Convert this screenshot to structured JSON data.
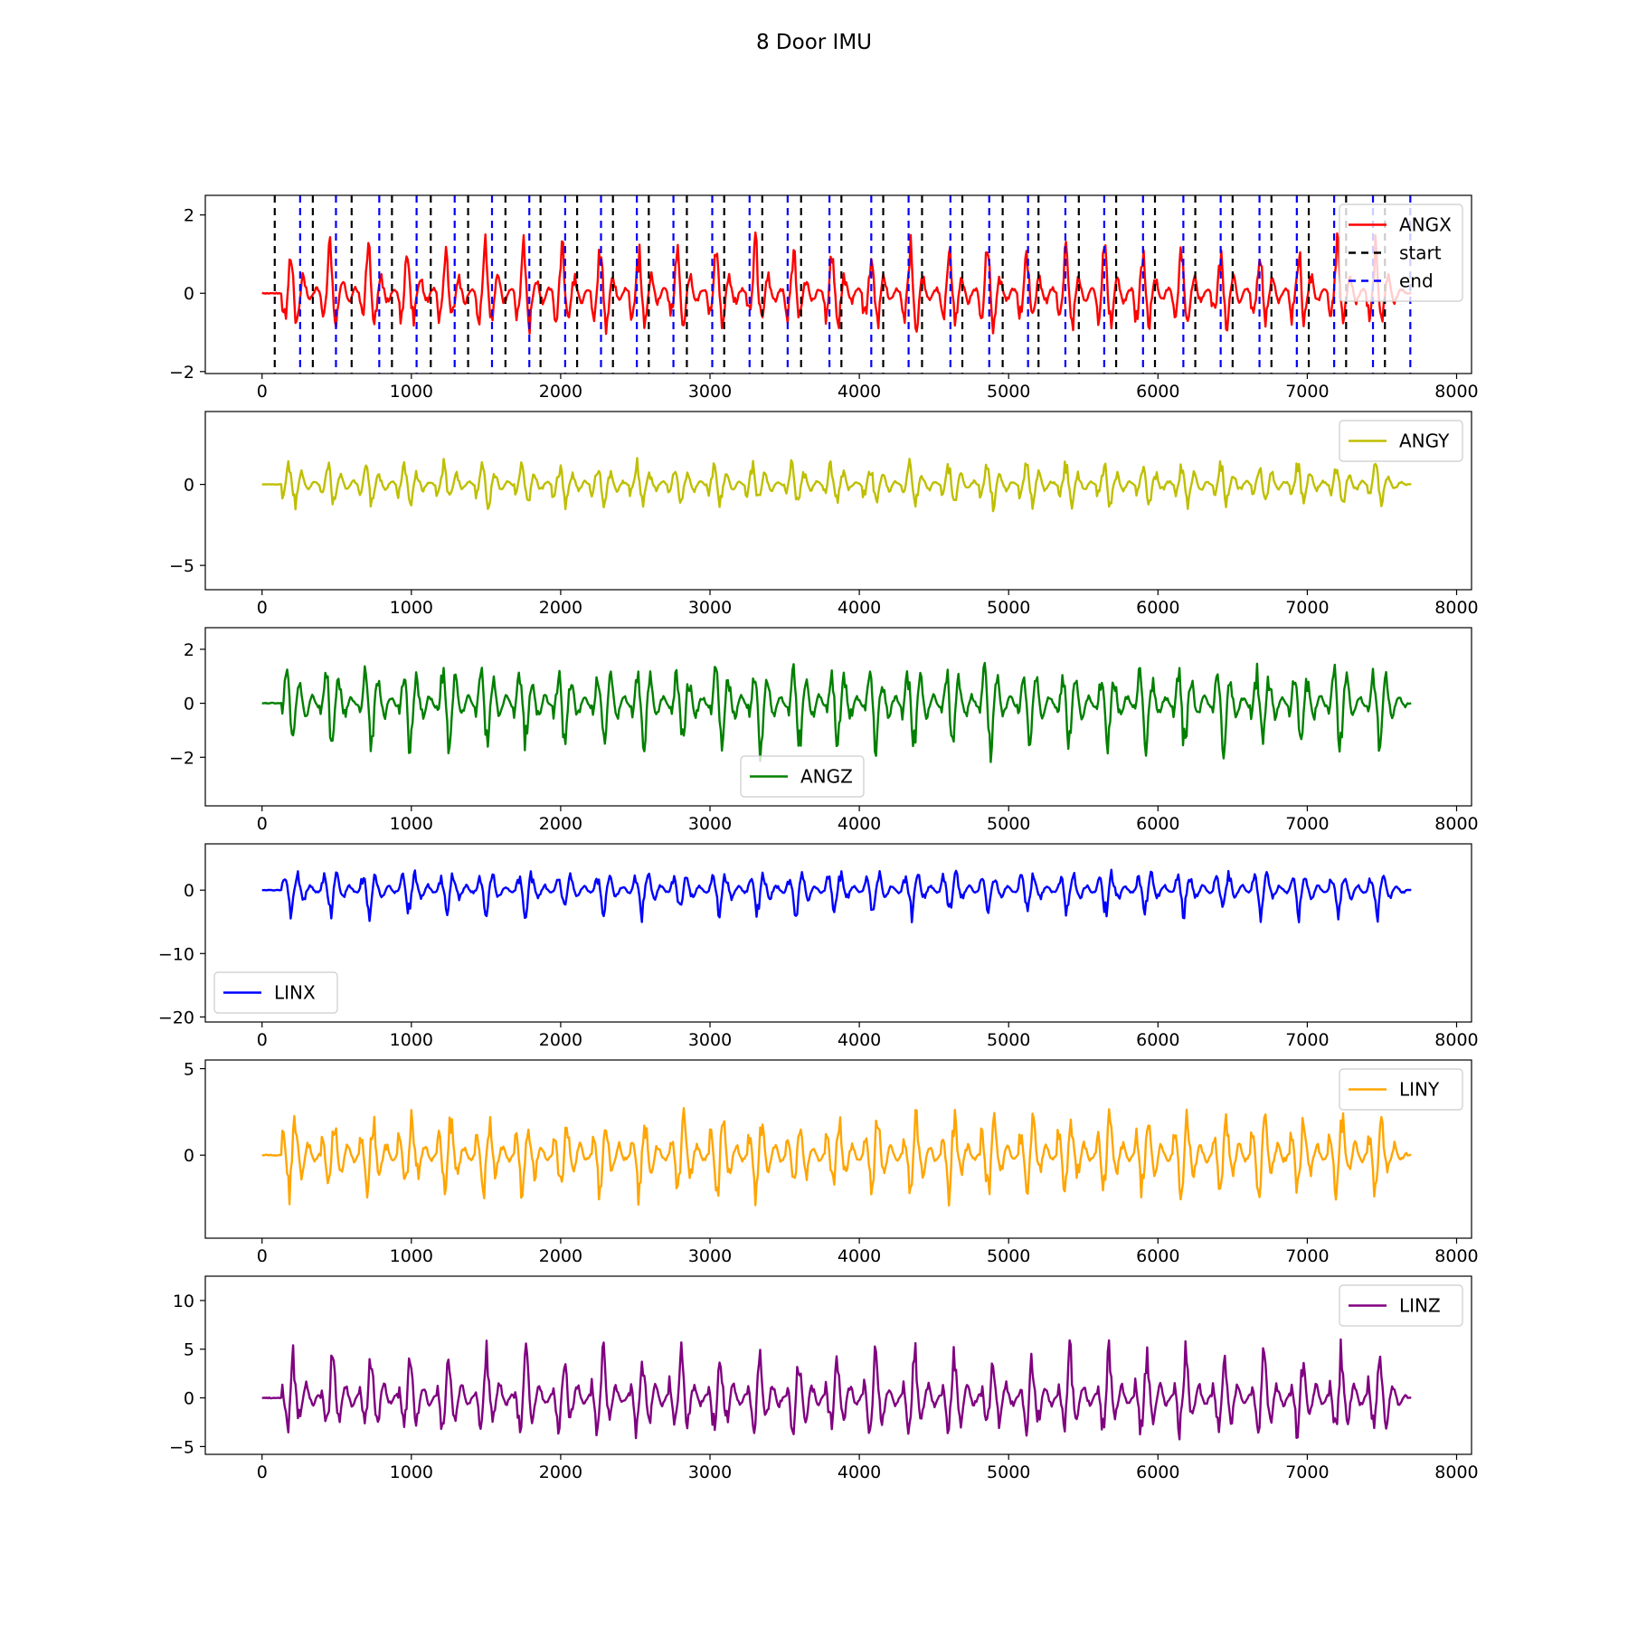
{
  "figure_title": "8 Door IMU",
  "chart_data": [
    {
      "type": "line",
      "series": [
        {
          "name": "ANGX",
          "color": "#ff0000",
          "amp": 1.25
        }
      ],
      "vlines": [
        {
          "name": "start",
          "color": "#000000",
          "x": [
            85,
            340,
            600,
            870,
            1130,
            1380,
            1630,
            1865,
            2110,
            2350,
            2590,
            2845,
            3095,
            3350,
            3610,
            3880,
            4160,
            4420,
            4690,
            4960,
            5200,
            5470,
            5720,
            5980,
            6250,
            6500,
            6760,
            7010,
            7260,
            7520
          ]
        },
        {
          "name": "end",
          "color": "#0000ff",
          "x": [
            255,
            495,
            785,
            1035,
            1290,
            1540,
            1790,
            2030,
            2270,
            2510,
            2755,
            3015,
            3265,
            3520,
            3800,
            4080,
            4330,
            4610,
            4870,
            5130,
            5380,
            5640,
            5900,
            6170,
            6420,
            6680,
            6930,
            7180,
            7440,
            7690
          ]
        }
      ],
      "x_range": [
        0,
        7700
      ],
      "xlim": [
        -380,
        8100
      ],
      "ylim": [
        -2.05,
        2.5
      ],
      "x_ticks": [
        0,
        1000,
        2000,
        3000,
        4000,
        5000,
        6000,
        7000,
        8000
      ],
      "y_ticks": [
        2,
        0,
        -2
      ],
      "y_tick_labels": [
        "2",
        "0",
        "−2"
      ],
      "legend": {
        "position": "top-right",
        "entries": [
          "ANGX",
          "start",
          "end"
        ]
      }
    },
    {
      "type": "line",
      "series": [
        {
          "name": "ANGY",
          "color": "#bfbf00",
          "amp": 1.6
        }
      ],
      "x_range": [
        0,
        7700
      ],
      "xlim": [
        -380,
        8100
      ],
      "ylim": [
        -6.5,
        4.5
      ],
      "x_ticks": [
        0,
        1000,
        2000,
        3000,
        4000,
        5000,
        6000,
        7000,
        8000
      ],
      "y_ticks": [
        0,
        -5
      ],
      "y_tick_labels": [
        "0",
        "−5"
      ],
      "legend": {
        "position": "top-right",
        "entries": [
          "ANGY"
        ]
      }
    },
    {
      "type": "line",
      "series": [
        {
          "name": "ANGZ",
          "color": "#008000",
          "amp": 1.8
        }
      ],
      "x_range": [
        0,
        7700
      ],
      "xlim": [
        -380,
        8100
      ],
      "ylim": [
        -3.8,
        2.8
      ],
      "x_ticks": [
        0,
        1000,
        2000,
        3000,
        4000,
        5000,
        6000,
        7000,
        8000
      ],
      "y_ticks": [
        2,
        0,
        -2
      ],
      "y_tick_labels": [
        "2",
        "0",
        "−2"
      ],
      "legend": {
        "position": "lower-center",
        "entries": [
          "ANGZ"
        ]
      }
    },
    {
      "type": "line",
      "series": [
        {
          "name": "LINX",
          "color": "#0000ff",
          "amp": 4.0
        }
      ],
      "x_range": [
        0,
        7700
      ],
      "xlim": [
        -380,
        8100
      ],
      "ylim": [
        -20.8,
        7.3
      ],
      "x_ticks": [
        0,
        1000,
        2000,
        3000,
        4000,
        5000,
        6000,
        7000,
        8000
      ],
      "y_ticks": [
        0,
        -10,
        -20
      ],
      "y_tick_labels": [
        "0",
        "−10",
        "−20"
      ],
      "legend": {
        "position": "lower-left",
        "entries": [
          "LINX"
        ]
      }
    },
    {
      "type": "line",
      "series": [
        {
          "name": "LINY",
          "color": "#ffa500",
          "amp": 2.8
        }
      ],
      "x_range": [
        0,
        7700
      ],
      "xlim": [
        -380,
        8100
      ],
      "ylim": [
        -4.8,
        5.5
      ],
      "x_ticks": [
        0,
        1000,
        2000,
        3000,
        4000,
        5000,
        6000,
        7000,
        8000
      ],
      "y_ticks": [
        5,
        0
      ],
      "y_tick_labels": [
        "5",
        "0"
      ],
      "legend": {
        "position": "top-right",
        "entries": [
          "LINY"
        ]
      }
    },
    {
      "type": "line",
      "series": [
        {
          "name": "LINZ",
          "color": "#800080",
          "amp": 5.0
        }
      ],
      "x_range": [
        0,
        7700
      ],
      "xlim": [
        -380,
        8100
      ],
      "ylim": [
        -5.8,
        12.5
      ],
      "x_ticks": [
        0,
        1000,
        2000,
        3000,
        4000,
        5000,
        6000,
        7000,
        8000
      ],
      "y_ticks": [
        10,
        5,
        0,
        -5
      ],
      "y_tick_labels": [
        "10",
        "5",
        "0",
        "−5"
      ],
      "legend": {
        "position": "top-right",
        "entries": [
          "LINZ"
        ]
      }
    }
  ]
}
